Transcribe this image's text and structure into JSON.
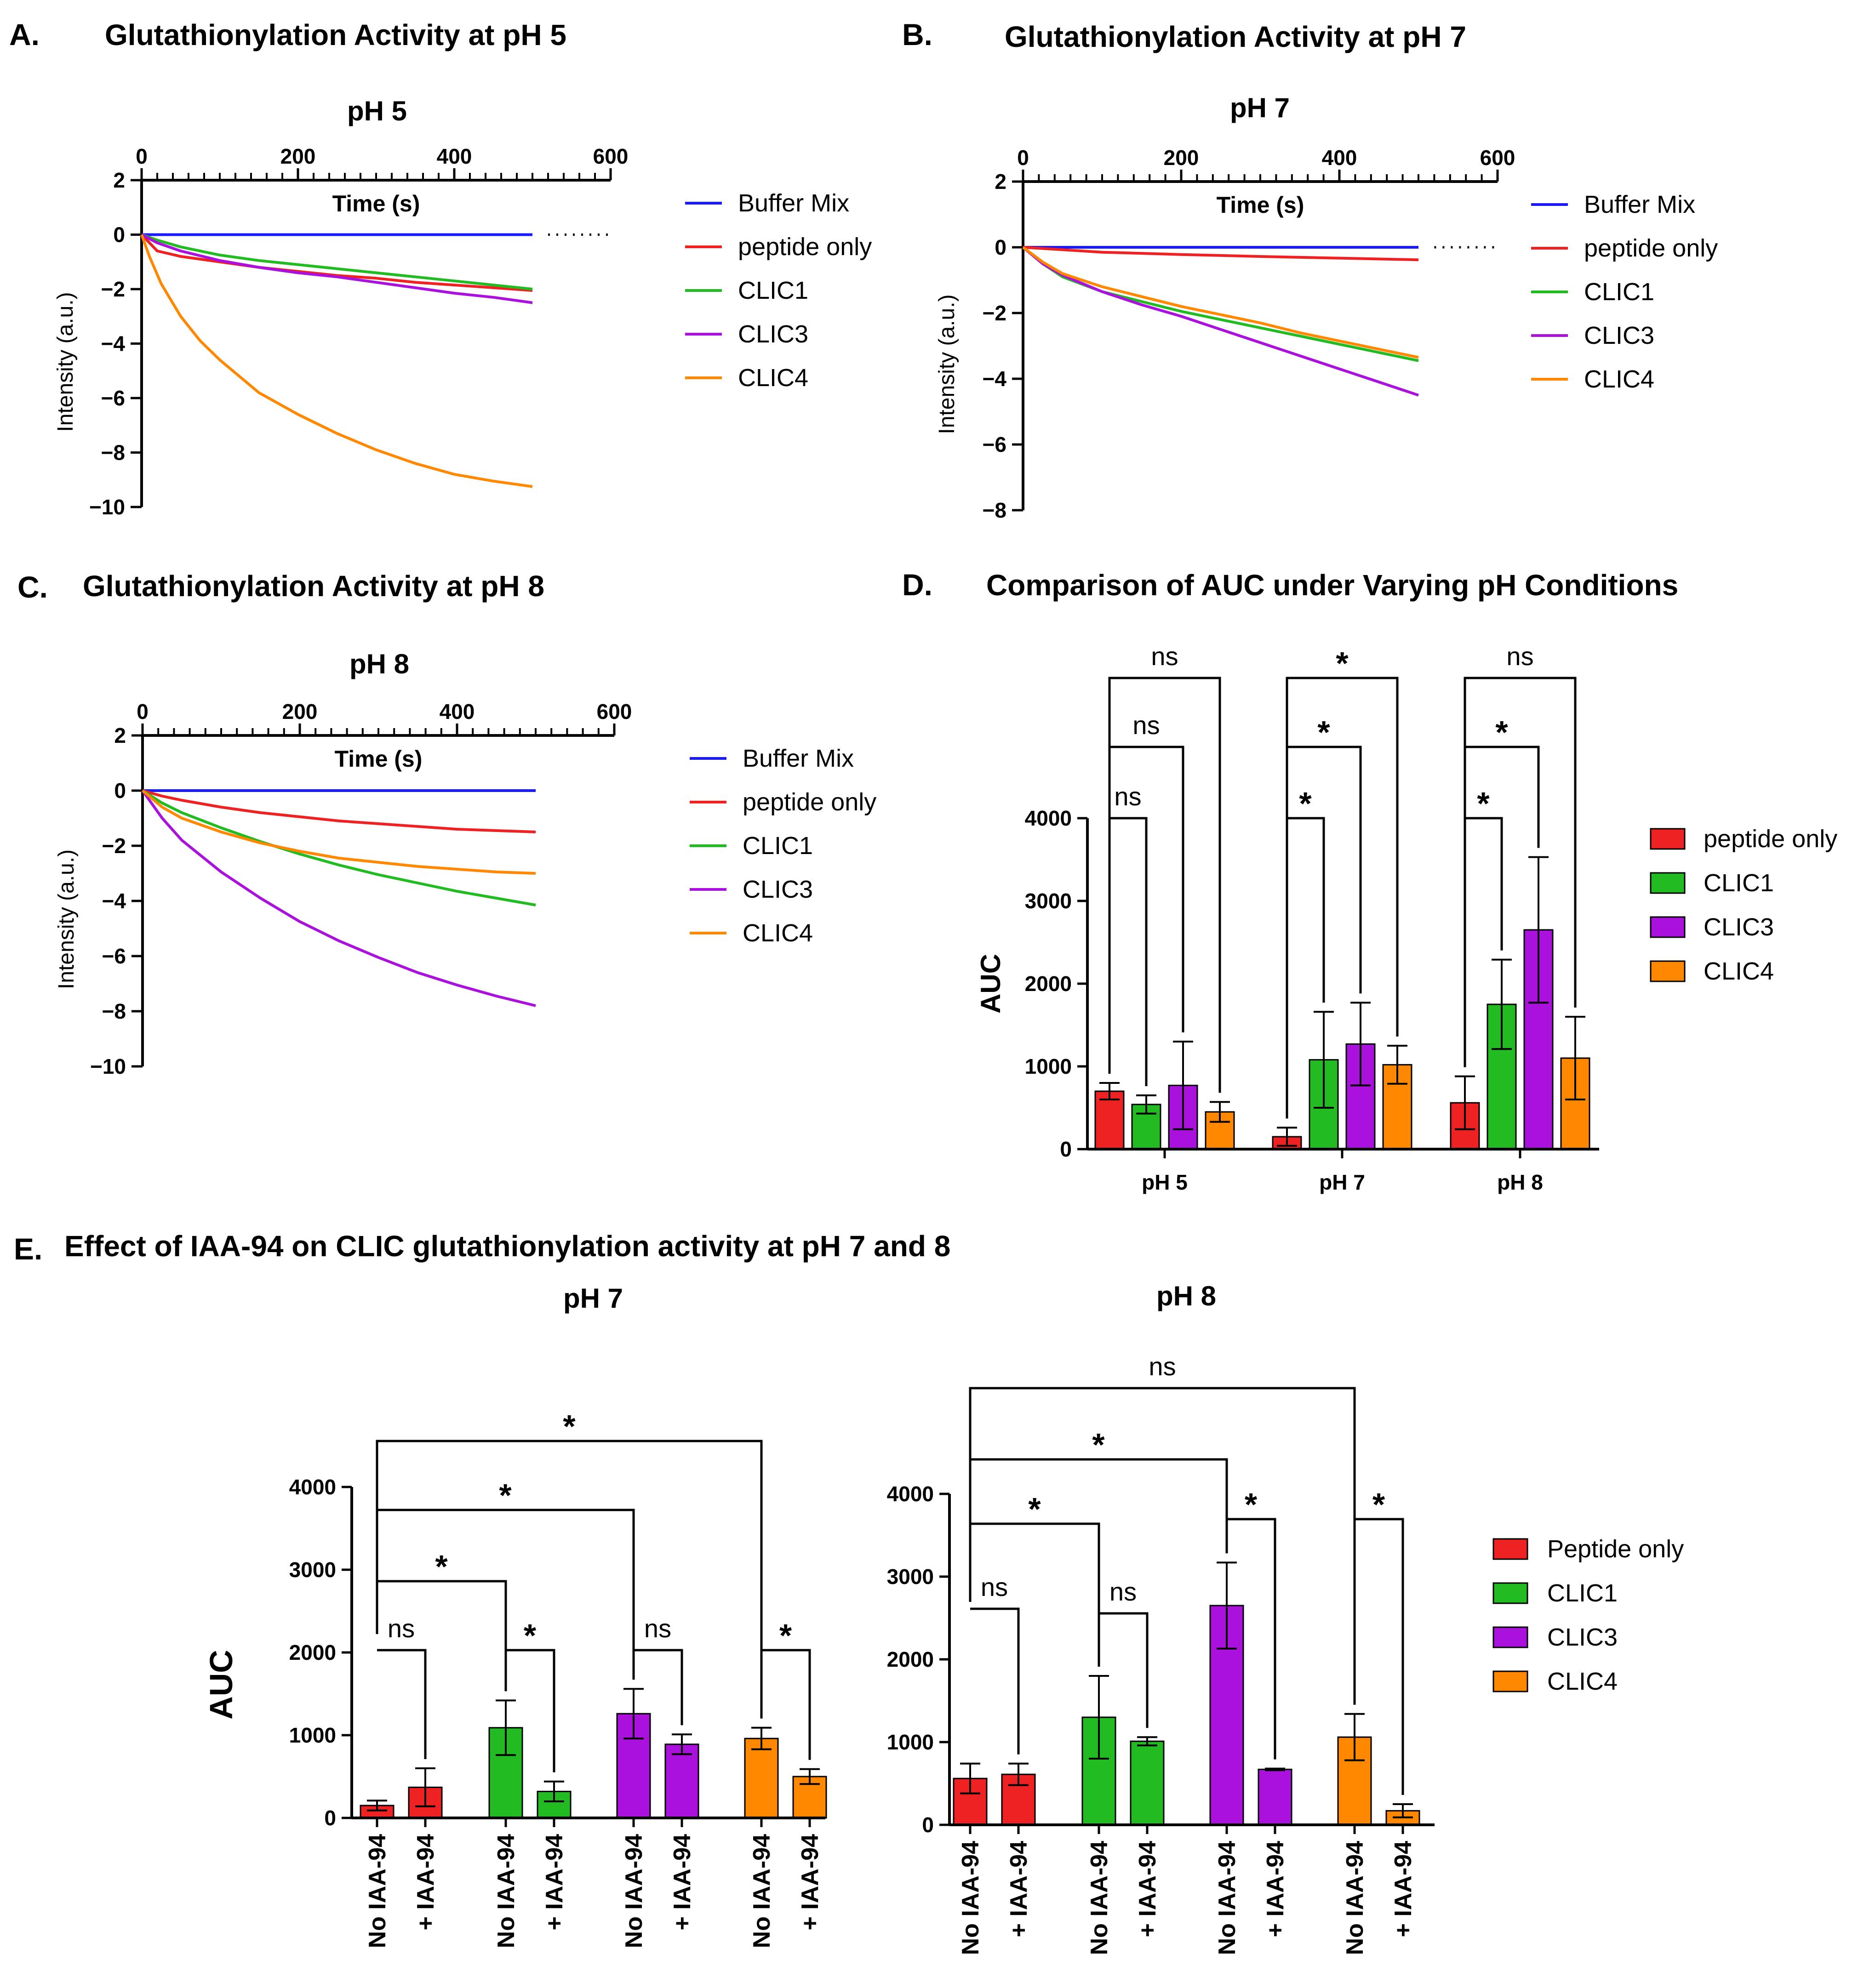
{
  "colors": {
    "Buffer Mix": "#1a1aff",
    "peptide only": "#ee2222",
    "Peptide only": "#ee2222",
    "CLIC1": "#22bb22",
    "CLIC3": "#aa11dd",
    "CLIC4": "#ff8800"
  },
  "panels": {
    "A": {
      "letter": "A.",
      "title": "Glutathionylation Activity at pH 5"
    },
    "B": {
      "letter": "B.",
      "title": "Glutathionylation Activity at pH 7"
    },
    "C": {
      "letter": "C.",
      "title": "Glutathionylation Activity at pH 8"
    },
    "D": {
      "letter": "D.",
      "title": "Comparison of AUC under Varying pH Conditions"
    },
    "E": {
      "letter": "E.",
      "title": "Effect of IAA-94 on CLIC glutathionylation activity at pH 7 and 8"
    }
  },
  "chart_data": [
    {
      "id": "A",
      "type": "line",
      "title": "pH 5",
      "xlabel": "Time (s)",
      "ylabel": "Intensity (a.u.)",
      "xlim": [
        0,
        600
      ],
      "ylim": [
        -10,
        2
      ],
      "xticks": [
        0,
        200,
        400,
        600
      ],
      "yticks": [
        2,
        0,
        -2,
        -4,
        -6,
        -8,
        -10
      ],
      "legend": [
        "Buffer Mix",
        "peptide only",
        "CLIC1",
        "CLIC3",
        "CLIC4"
      ],
      "series": [
        {
          "name": "Buffer Mix",
          "x": [
            0,
            100,
            200,
            300,
            400,
            500
          ],
          "y": [
            0,
            0,
            0,
            0,
            0,
            0
          ]
        },
        {
          "name": "peptide only",
          "x": [
            0,
            20,
            50,
            100,
            150,
            200,
            250,
            300,
            350,
            400,
            450,
            500
          ],
          "y": [
            0,
            -0.6,
            -0.8,
            -1.0,
            -1.2,
            -1.35,
            -1.5,
            -1.6,
            -1.75,
            -1.85,
            -1.95,
            -2.05
          ]
        },
        {
          "name": "CLIC1",
          "x": [
            0,
            20,
            50,
            100,
            150,
            200,
            250,
            300,
            350,
            400,
            450,
            500
          ],
          "y": [
            0,
            -0.2,
            -0.45,
            -0.75,
            -0.95,
            -1.1,
            -1.25,
            -1.4,
            -1.55,
            -1.7,
            -1.85,
            -2.0
          ]
        },
        {
          "name": "CLIC3",
          "x": [
            0,
            20,
            50,
            100,
            150,
            200,
            250,
            300,
            350,
            400,
            450,
            500
          ],
          "y": [
            0,
            -0.3,
            -0.6,
            -0.95,
            -1.2,
            -1.4,
            -1.55,
            -1.75,
            -1.95,
            -2.15,
            -2.3,
            -2.5
          ]
        },
        {
          "name": "CLIC4",
          "x": [
            0,
            10,
            25,
            50,
            75,
            100,
            150,
            200,
            250,
            300,
            350,
            400,
            450,
            500
          ],
          "y": [
            0,
            -0.8,
            -1.8,
            -3.0,
            -3.9,
            -4.6,
            -5.8,
            -6.6,
            -7.3,
            -7.9,
            -8.4,
            -8.8,
            -9.05,
            -9.25
          ]
        }
      ]
    },
    {
      "id": "B",
      "type": "line",
      "title": "pH 7",
      "xlabel": "Time (s)",
      "ylabel": "Intensity (a.u.)",
      "xlim": [
        0,
        600
      ],
      "ylim": [
        -8,
        2
      ],
      "xticks": [
        0,
        200,
        400,
        600
      ],
      "yticks": [
        2,
        0,
        -2,
        -4,
        -6,
        -8
      ],
      "legend": [
        "Buffer Mix",
        "peptide only",
        "CLIC1",
        "CLIC3",
        "CLIC4"
      ],
      "series": [
        {
          "name": "Buffer Mix",
          "x": [
            0,
            100,
            200,
            300,
            400,
            500
          ],
          "y": [
            0,
            0,
            0,
            0,
            0,
            0
          ]
        },
        {
          "name": "peptide only",
          "x": [
            0,
            100,
            200,
            300,
            400,
            500
          ],
          "y": [
            0,
            -0.15,
            -0.22,
            -0.28,
            -0.33,
            -0.38
          ]
        },
        {
          "name": "CLIC1",
          "x": [
            0,
            25,
            50,
            100,
            150,
            200,
            250,
            300,
            350,
            400,
            450,
            500
          ],
          "y": [
            0,
            -0.5,
            -0.9,
            -1.35,
            -1.65,
            -1.95,
            -2.2,
            -2.45,
            -2.7,
            -2.95,
            -3.2,
            -3.45
          ]
        },
        {
          "name": "CLIC3",
          "x": [
            0,
            25,
            50,
            100,
            150,
            200,
            250,
            300,
            350,
            400,
            450,
            500
          ],
          "y": [
            0,
            -0.5,
            -0.85,
            -1.35,
            -1.75,
            -2.1,
            -2.5,
            -2.9,
            -3.3,
            -3.7,
            -4.1,
            -4.5
          ]
        },
        {
          "name": "CLIC4",
          "x": [
            0,
            25,
            50,
            100,
            150,
            200,
            250,
            300,
            350,
            400,
            450,
            500
          ],
          "y": [
            0,
            -0.45,
            -0.8,
            -1.2,
            -1.5,
            -1.8,
            -2.05,
            -2.3,
            -2.6,
            -2.85,
            -3.1,
            -3.35
          ]
        }
      ]
    },
    {
      "id": "C",
      "type": "line",
      "title": "pH 8",
      "xlabel": "Time (s)",
      "ylabel": "Intensity (a.u.)",
      "xlim": [
        0,
        600
      ],
      "ylim": [
        -10,
        2
      ],
      "xticks": [
        0,
        200,
        400,
        600
      ],
      "yticks": [
        2,
        0,
        -2,
        -4,
        -6,
        -8,
        -10
      ],
      "legend": [
        "Buffer Mix",
        "peptide only",
        "CLIC1",
        "CLIC3",
        "CLIC4"
      ],
      "series": [
        {
          "name": "Buffer Mix",
          "x": [
            0,
            100,
            200,
            300,
            400,
            500
          ],
          "y": [
            0,
            0,
            0,
            0,
            0,
            0
          ]
        },
        {
          "name": "peptide only",
          "x": [
            0,
            25,
            50,
            100,
            150,
            200,
            250,
            300,
            350,
            400,
            450,
            500
          ],
          "y": [
            0,
            -0.2,
            -0.35,
            -0.6,
            -0.8,
            -0.95,
            -1.1,
            -1.2,
            -1.3,
            -1.4,
            -1.45,
            -1.5
          ]
        },
        {
          "name": "CLIC1",
          "x": [
            0,
            25,
            50,
            100,
            150,
            200,
            250,
            300,
            350,
            400,
            450,
            500
          ],
          "y": [
            0,
            -0.45,
            -0.8,
            -1.35,
            -1.85,
            -2.3,
            -2.7,
            -3.05,
            -3.35,
            -3.65,
            -3.9,
            -4.15
          ]
        },
        {
          "name": "CLIC3",
          "x": [
            0,
            25,
            50,
            100,
            150,
            200,
            250,
            300,
            350,
            400,
            450,
            500
          ],
          "y": [
            0,
            -1.0,
            -1.8,
            -2.95,
            -3.9,
            -4.75,
            -5.45,
            -6.05,
            -6.6,
            -7.05,
            -7.45,
            -7.8
          ]
        },
        {
          "name": "CLIC4",
          "x": [
            0,
            25,
            50,
            100,
            150,
            200,
            250,
            300,
            350,
            400,
            450,
            500
          ],
          "y": [
            0,
            -0.6,
            -1.0,
            -1.5,
            -1.9,
            -2.2,
            -2.45,
            -2.6,
            -2.75,
            -2.85,
            -2.95,
            -3.0
          ]
        }
      ]
    },
    {
      "id": "D",
      "type": "bar",
      "title": "",
      "xlabel": "",
      "ylabel": "AUC",
      "ylim": [
        0,
        4000
      ],
      "yticks": [
        0,
        1000,
        2000,
        3000,
        4000
      ],
      "categories": [
        "pH 5",
        "pH 7",
        "pH 8"
      ],
      "legend": [
        "peptide only",
        "CLIC1",
        "CLIC3",
        "CLIC4"
      ],
      "series": [
        {
          "name": "peptide only",
          "values": [
            700,
            150,
            560
          ],
          "errors": [
            100,
            110,
            320
          ]
        },
        {
          "name": "CLIC1",
          "values": [
            540,
            1080,
            1750
          ],
          "errors": [
            110,
            580,
            540
          ]
        },
        {
          "name": "CLIC3",
          "values": [
            770,
            1270,
            2650
          ],
          "errors": [
            530,
            500,
            880
          ]
        },
        {
          "name": "CLIC4",
          "values": [
            450,
            1020,
            1100
          ],
          "errors": [
            120,
            230,
            500
          ]
        }
      ],
      "comparisons": [
        {
          "group": 0,
          "from": 0,
          "to": 1,
          "label": "ns"
        },
        {
          "group": 0,
          "from": 0,
          "to": 2,
          "label": "ns"
        },
        {
          "group": 0,
          "from": 0,
          "to": 3,
          "label": "ns"
        },
        {
          "group": 1,
          "from": 0,
          "to": 1,
          "label": "*"
        },
        {
          "group": 1,
          "from": 0,
          "to": 2,
          "label": "*"
        },
        {
          "group": 1,
          "from": 0,
          "to": 3,
          "label": "*"
        },
        {
          "group": 2,
          "from": 0,
          "to": 1,
          "label": "*"
        },
        {
          "group": 2,
          "from": 0,
          "to": 2,
          "label": "*"
        },
        {
          "group": 2,
          "from": 0,
          "to": 3,
          "label": "ns"
        }
      ]
    },
    {
      "id": "E1",
      "type": "bar",
      "title": "pH 7",
      "xlabel": "",
      "ylabel": "AUC",
      "ylim": [
        0,
        4000
      ],
      "yticks": [
        0,
        1000,
        2000,
        3000,
        4000
      ],
      "categories": [
        "No IAA-94",
        "+ IAA-94",
        "No IAA-94",
        "+ IAA-94",
        "No IAA-94",
        "+ IAA-94",
        "No IAA-94",
        "+ IAA-94"
      ],
      "bar_groups": [
        "Peptide only",
        "Peptide only",
        "CLIC1",
        "CLIC1",
        "CLIC3",
        "CLIC3",
        "CLIC4",
        "CLIC4"
      ],
      "values": [
        150,
        370,
        1090,
        320,
        1260,
        890,
        960,
        500
      ],
      "errors": [
        60,
        230,
        330,
        120,
        300,
        120,
        130,
        90
      ],
      "comparisons": [
        {
          "from": 0,
          "to": 1,
          "label": "ns"
        },
        {
          "from": 2,
          "to": 3,
          "label": "*"
        },
        {
          "from": 4,
          "to": 5,
          "label": "ns"
        },
        {
          "from": 6,
          "to": 7,
          "label": "*"
        },
        {
          "from": 0,
          "to": 2,
          "label": "*"
        },
        {
          "from": 0,
          "to": 4,
          "label": "*"
        },
        {
          "from": 0,
          "to": 6,
          "label": "*"
        }
      ]
    },
    {
      "id": "E2",
      "type": "bar",
      "title": "pH 8",
      "xlabel": "",
      "ylabel": "",
      "ylim": [
        0,
        4000
      ],
      "yticks": [
        0,
        1000,
        2000,
        3000,
        4000
      ],
      "categories": [
        "No IAA-94",
        "+ IAA-94",
        "No IAA-94",
        "+ IAA-94",
        "No IAA-94",
        "+ IAA-94",
        "No IAA-94",
        "+ IAA-94"
      ],
      "bar_groups": [
        "Peptide only",
        "Peptide only",
        "CLIC1",
        "CLIC1",
        "CLIC3",
        "CLIC3",
        "CLIC4",
        "CLIC4"
      ],
      "legend": [
        "Peptide only",
        "CLIC1",
        "CLIC3",
        "CLIC4"
      ],
      "values": [
        560,
        610,
        1300,
        1010,
        2650,
        670,
        1060,
        170
      ],
      "errors": [
        180,
        130,
        500,
        50,
        520,
        10,
        280,
        80
      ],
      "comparisons": [
        {
          "from": 0,
          "to": 1,
          "label": "ns"
        },
        {
          "from": 2,
          "to": 3,
          "label": "ns"
        },
        {
          "from": 4,
          "to": 5,
          "label": "*"
        },
        {
          "from": 6,
          "to": 7,
          "label": "*"
        },
        {
          "from": 0,
          "to": 2,
          "label": "*"
        },
        {
          "from": 0,
          "to": 4,
          "label": "*"
        },
        {
          "from": 0,
          "to": 6,
          "label": "ns"
        }
      ]
    }
  ]
}
